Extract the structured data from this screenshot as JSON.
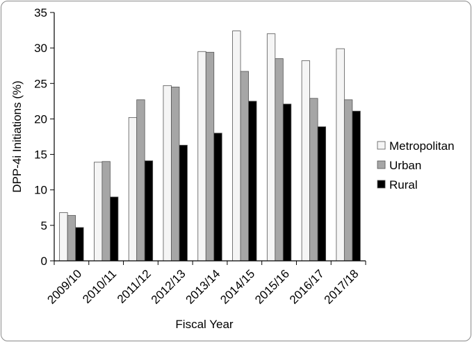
{
  "chart_data": {
    "type": "bar",
    "title": "",
    "xlabel": "Fiscal Year",
    "ylabel": "DPP-4i Initiations (%)",
    "categories": [
      "2009/10",
      "2010/11",
      "2011/12",
      "2012/13",
      "2013/14",
      "2014/15",
      "2015/16",
      "2016/17",
      "2017/18"
    ],
    "series": [
      {
        "name": "Metropolitan",
        "color": "#f5f5f5",
        "values": [
          6.8,
          13.9,
          20.2,
          24.7,
          29.5,
          32.4,
          32.0,
          28.2,
          29.9
        ]
      },
      {
        "name": "Urban",
        "color": "#a6a6a6",
        "values": [
          6.4,
          14.0,
          22.7,
          24.5,
          29.4,
          26.7,
          28.5,
          22.9,
          22.7
        ]
      },
      {
        "name": "Rural",
        "color": "#000000",
        "values": [
          4.7,
          9.0,
          14.1,
          16.3,
          18.0,
          22.5,
          22.1,
          18.9,
          21.1
        ]
      }
    ],
    "ylim": [
      0,
      35
    ],
    "yticks": [
      0,
      5,
      10,
      15,
      20,
      25,
      30,
      35
    ],
    "grid": false,
    "legend_position": "right"
  }
}
